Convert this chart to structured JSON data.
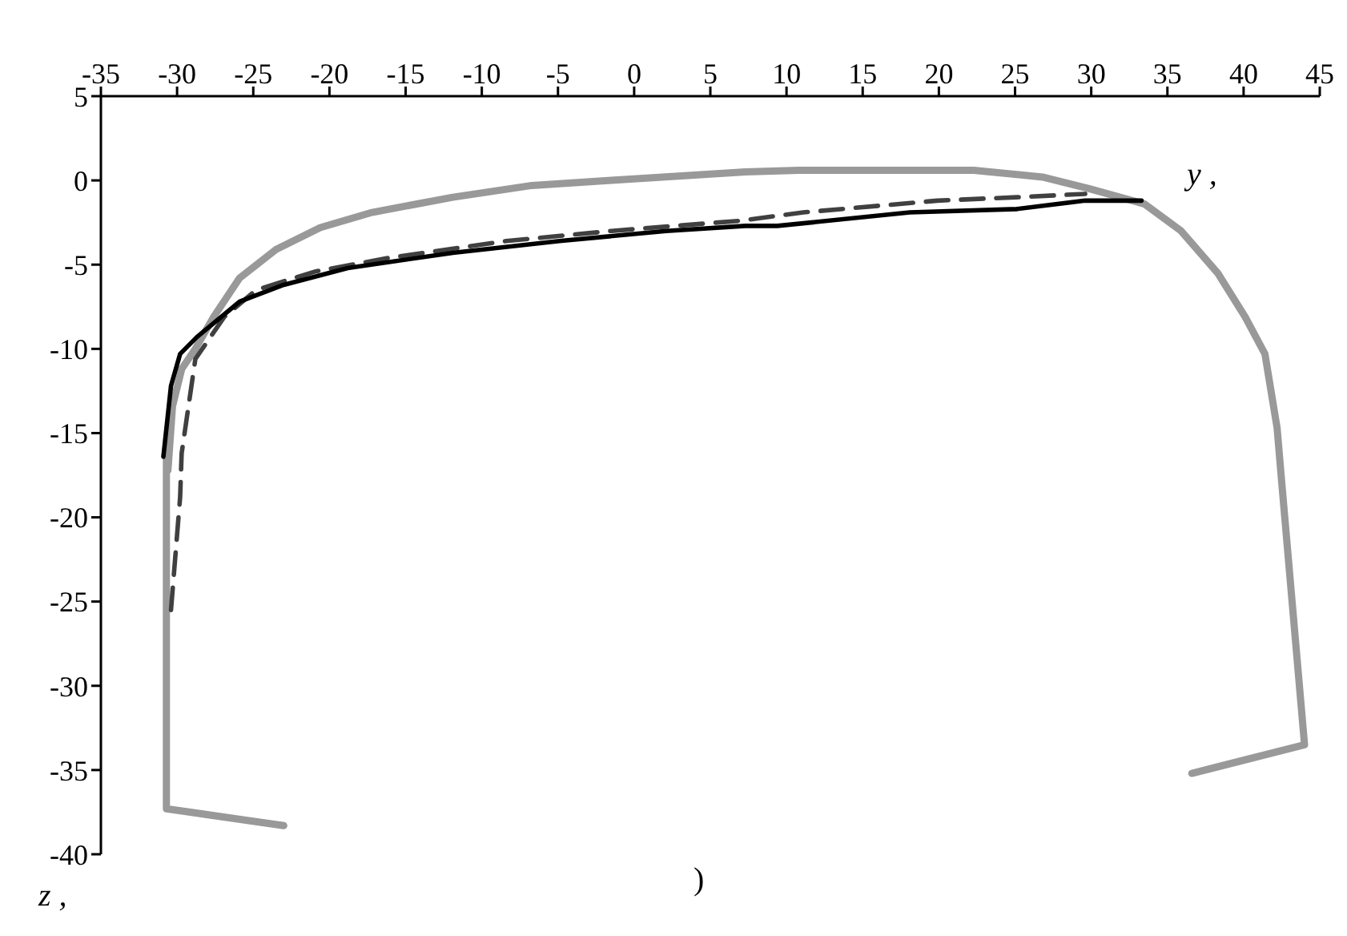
{
  "chart_data": {
    "type": "line",
    "xlabel": "y ,",
    "ylabel": "z ,",
    "annotations": [
      ")"
    ],
    "xlim": [
      -35,
      45
    ],
    "xticks": [
      -35,
      -30,
      -25,
      -20,
      -15,
      -10,
      -5,
      0,
      5,
      10,
      15,
      20,
      25,
      30,
      35,
      40,
      45
    ],
    "ylim": [
      -40,
      5
    ],
    "yticks": [
      -40,
      -35,
      -30,
      -25,
      -20,
      -15,
      -10,
      -5,
      0,
      5
    ],
    "grid": false,
    "marker": "none",
    "series": [
      {
        "color": "#999999",
        "line_style": "solid",
        "x": [
          -23.0,
          -30.7,
          -30.7,
          -30.6,
          -30.3,
          -29.7,
          -28.8,
          -27.6,
          -25.9,
          -23.5,
          -20.6,
          -17.2,
          -11.9,
          -6.7,
          -1.5,
          7.3,
          10.8,
          22.3,
          26.8,
          29.9,
          33.5,
          35.9,
          38.3,
          40.1,
          41.4,
          42.2,
          42.5,
          44.0,
          36.6
        ],
        "values": [
          -38.3,
          -37.3,
          -16.0,
          -17.2,
          -13.4,
          -11.2,
          -10.0,
          -8.1,
          -5.8,
          -4.1,
          -2.8,
          -1.9,
          -1.0,
          -0.3,
          0,
          0.5,
          0.6,
          0.6,
          0.2,
          -0.5,
          -1.4,
          -3.0,
          -5.5,
          -8.1,
          -10.3,
          -14.7,
          -17.9,
          -33.5,
          -35.2
        ]
      },
      {
        "color": "#404040",
        "line_style": "dashed",
        "x": [
          -30.4,
          -29.8,
          -29.7,
          -28.8,
          -26.9,
          -24.8,
          -20.9,
          -16.1,
          -8.4,
          -1.5,
          6.9,
          11.1,
          19.9,
          25.1,
          29.6
        ],
        "values": [
          -25.5,
          -18.8,
          -16.2,
          -10.6,
          -8.1,
          -6.5,
          -5.4,
          -4.6,
          -3.6,
          -3.0,
          -2.4,
          -1.9,
          -1.2,
          -1.0,
          -0.8
        ]
      },
      {
        "color": "#000000",
        "line_style": "solid",
        "x": [
          -30.9,
          -30.4,
          -29.8,
          -28.7,
          -25.9,
          -23.0,
          -18.8,
          -11.9,
          -4.9,
          2.1,
          7.3,
          9.4,
          18.1,
          25.1,
          29.6,
          33.3
        ],
        "values": [
          -16.4,
          -12.2,
          -10.3,
          -9.3,
          -7.2,
          -6.2,
          -5.2,
          -4.3,
          -3.6,
          -3.0,
          -2.7,
          -2.7,
          -1.9,
          -1.7,
          -1.2,
          -1.2
        ]
      }
    ]
  }
}
